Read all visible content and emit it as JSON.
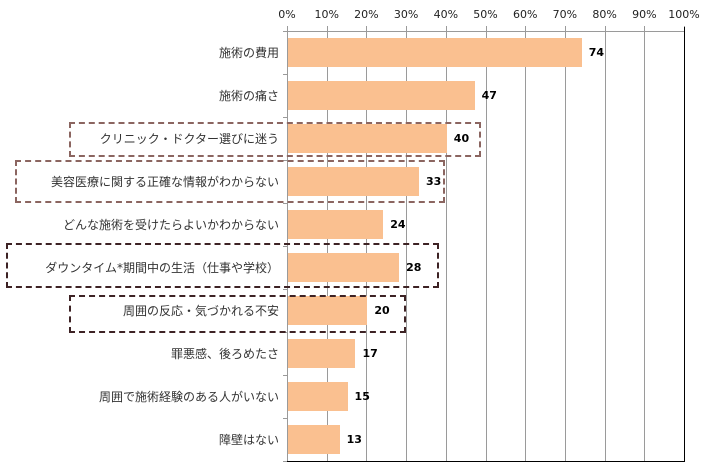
{
  "chart_data": {
    "type": "bar",
    "orientation": "horizontal",
    "title": "",
    "xlabel": "",
    "ylabel": "",
    "xlim": [
      0,
      100
    ],
    "x_ticks": [
      "0%",
      "10%",
      "20%",
      "30%",
      "40%",
      "50%",
      "60%",
      "70%",
      "80%",
      "90%",
      "100%"
    ],
    "axis_position": "top",
    "grid": true,
    "categories": [
      "施術の費用",
      "施術の痛さ",
      "クリニック・ドクター選びに迷う",
      "美容医療に関する正確な情報がわからない",
      "どんな施術を受けたらよいかわからない",
      "ダウンタイム*期間中の生活（仕事や学校）",
      "周囲の反応・気づかれる不安",
      "罪悪感、後ろめたさ",
      "周囲で施術経験のある人がいない",
      "障壁はない"
    ],
    "values": [
      74,
      47,
      40,
      33,
      24,
      28,
      20,
      17,
      15,
      13
    ],
    "value_labels": [
      "74",
      "47",
      "40",
      "33",
      "24",
      "28",
      "20",
      "17",
      "15",
      "13"
    ],
    "bar_color": "#FAC090",
    "highlighted": [
      {
        "category": "クリニック・ドクター選びに迷う",
        "box_color": "#8B6560"
      },
      {
        "category": "美容医療に関する正確な情報がわからない",
        "box_color": "#8B6560"
      },
      {
        "category": "ダウンタイム*期間中の生活（仕事や学校）",
        "box_color": "#3D2224"
      },
      {
        "category": "周囲の反応・気づかれる不安",
        "box_color": "#3D2224"
      }
    ]
  }
}
